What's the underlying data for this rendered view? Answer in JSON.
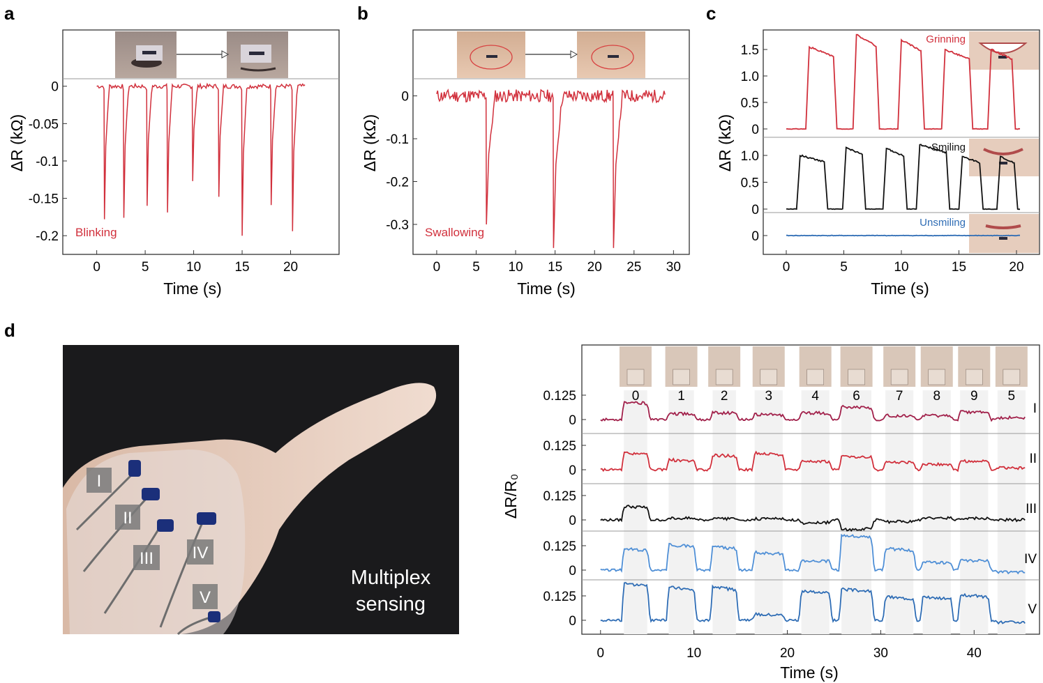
{
  "panel_labels": {
    "a": "a",
    "b": "b",
    "c": "c",
    "d": "d"
  },
  "colors": {
    "red": "#d1303c",
    "black": "#111111",
    "blue": "#2f6db5",
    "lightblue": "#4f8fd6",
    "darkred": "#a1204a",
    "photo_bg": "#1a1a1c"
  },
  "photo_d": {
    "label_I": "I",
    "label_II": "II",
    "label_III": "III",
    "label_IV": "IV",
    "label_V": "V",
    "caption_line1": "Multiplex",
    "caption_line2": "sensing"
  },
  "chart_data": [
    {
      "panel": "a",
      "type": "line",
      "xlabel": "Time (s)",
      "ylabel": "ΔR (kΩ)",
      "xlim": [
        -3.5,
        25
      ],
      "ylim": [
        -0.225,
        0.01
      ],
      "xticks": [
        0,
        5,
        10,
        15,
        20
      ],
      "yticks": [
        0,
        -0.05,
        -0.1,
        -0.15,
        -0.2
      ],
      "ytick_labels": [
        "0",
        "-0.05",
        "-0.1",
        "-0.15",
        "-0.2"
      ],
      "annotation": "Blinking",
      "insets": [
        "eye open photo",
        "eye closed photo"
      ],
      "series": [
        {
          "color": "#d1303c",
          "baseline": 0,
          "dips": [
            [
              0.8,
              -0.178
            ],
            [
              2.8,
              -0.176
            ],
            [
              5.2,
              -0.16
            ],
            [
              7.3,
              -0.169
            ],
            [
              9.9,
              -0.127
            ],
            [
              12.6,
              -0.148
            ],
            [
              15.0,
              -0.2
            ],
            [
              18.0,
              -0.159
            ],
            [
              20.2,
              -0.194
            ]
          ],
          "x_range": [
            0,
            21.5
          ]
        }
      ]
    },
    {
      "panel": "b",
      "type": "line",
      "xlabel": "Time (s)",
      "ylabel": "ΔR (kΩ)",
      "xlim": [
        -3,
        32
      ],
      "ylim": [
        -0.37,
        0.04
      ],
      "xticks": [
        0,
        5,
        10,
        15,
        20,
        25,
        30
      ],
      "yticks": [
        0,
        -0.1,
        -0.2,
        -0.3
      ],
      "ytick_labels": [
        "0",
        "-0.1",
        "-0.2",
        "-0.3"
      ],
      "annotation": "Swallowing",
      "insets": [
        "neck photo 1",
        "neck photo 2"
      ],
      "series": [
        {
          "color": "#d1303c",
          "baseline": 0,
          "dips": [
            [
              6.3,
              -0.3
            ],
            [
              14.8,
              -0.355
            ],
            [
              22.4,
              -0.355
            ]
          ],
          "x_range": [
            0,
            29
          ]
        }
      ]
    },
    {
      "panel": "c",
      "type": "line",
      "xlabel": "Time (s)",
      "ylabel": "ΔR (kΩ)",
      "xlim": [
        -2,
        22
      ],
      "xticks": [
        0,
        5,
        10,
        15,
        20
      ],
      "series": [
        {
          "name": "Grinning",
          "color": "#d1303c",
          "yticks": [
            0,
            0.5,
            1.0,
            1.5
          ],
          "ytick_labels": [
            "0",
            "0.5",
            "1.0",
            "1.5"
          ],
          "pulses": [
            [
              2.0,
              4.1,
              1.55
            ],
            [
              6.1,
              7.8,
              1.78
            ],
            [
              10.0,
              11.7,
              1.68
            ],
            [
              13.8,
              15.9,
              1.5
            ],
            [
              17.8,
              19.6,
              1.5
            ]
          ]
        },
        {
          "name": "Smiling",
          "color": "#111111",
          "yticks": [
            0,
            0.5,
            1.0
          ],
          "ytick_labels": [
            "0",
            "0.5",
            "1.0"
          ],
          "pulses": [
            [
              1.2,
              3.3,
              1.0
            ],
            [
              5.2,
              6.6,
              1.15
            ],
            [
              8.7,
              10.2,
              1.13
            ],
            [
              11.6,
              13.9,
              1.2
            ],
            [
              15.3,
              16.8,
              0.98
            ],
            [
              18.6,
              19.8,
              0.98
            ]
          ]
        },
        {
          "name": "Unsmiling",
          "color": "#2f6db5",
          "yticks": [
            0
          ],
          "ytick_labels": [
            "0"
          ],
          "pulses": []
        }
      ]
    },
    {
      "panel": "d",
      "type": "line",
      "xlabel": "Time (s)",
      "ylabel": "ΔR/R₀",
      "xlim": [
        -2,
        47
      ],
      "xticks": [
        0,
        10,
        20,
        30,
        40
      ],
      "gesture_numbers": [
        "0",
        "1",
        "2",
        "3",
        "4",
        "6",
        "7",
        "8",
        "9",
        "5"
      ],
      "gesture_intervals": [
        [
          2.5,
          5
        ],
        [
          7.3,
          10
        ],
        [
          12,
          14.5
        ],
        [
          16.5,
          19.5
        ],
        [
          21.5,
          24.5
        ],
        [
          25.8,
          29
        ],
        [
          30.5,
          33.5
        ],
        [
          34.5,
          37.5
        ],
        [
          38.5,
          41.5
        ],
        [
          42.5,
          45.5
        ]
      ],
      "yticks": [
        0,
        0.125
      ],
      "ytick_labels": [
        "0",
        "0.125"
      ],
      "series": [
        {
          "name": "I",
          "color": "#a1204a",
          "levels": [
            0.09,
            0.03,
            0.035,
            0.025,
            0.035,
            0.065,
            0.02,
            0.02,
            0.04,
            0.01
          ]
        },
        {
          "name": "II",
          "color": "#d1303c",
          "levels": [
            0.085,
            0.05,
            0.075,
            0.085,
            0.045,
            0.07,
            0.04,
            0.03,
            0.045,
            0.01
          ]
        },
        {
          "name": "III",
          "color": "#111111",
          "levels": [
            0.07,
            0.01,
            0.005,
            0.005,
            -0.015,
            -0.05,
            -0.01,
            0.01,
            0.01,
            0.0
          ]
        },
        {
          "name": "IV",
          "color": "#4f8fd6",
          "levels": [
            0.11,
            0.13,
            0.12,
            0.09,
            0.05,
            0.18,
            0.11,
            0.04,
            0.05,
            -0.01
          ]
        },
        {
          "name": "V",
          "color": "#2f6db5",
          "levels": [
            0.19,
            0.17,
            0.17,
            0.03,
            0.15,
            0.16,
            0.12,
            0.12,
            0.13,
            -0.01
          ]
        }
      ]
    }
  ]
}
